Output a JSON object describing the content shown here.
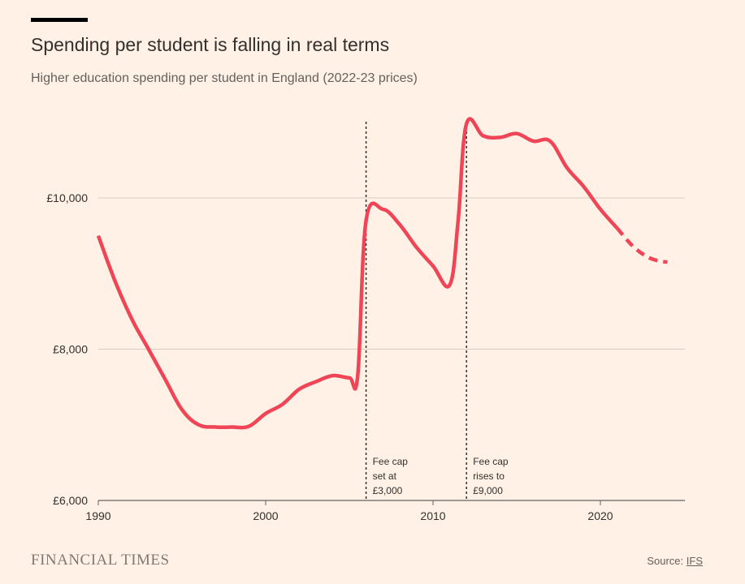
{
  "header": {
    "title": "Spending per student is falling in real terms",
    "subtitle": "Higher education spending per student in England (2022-23 prices)"
  },
  "footer": {
    "logo_text": "FINANCIAL TIMES",
    "source_label": "Source: ",
    "source_link": "IFS"
  },
  "colors": {
    "background": "#FFF1E5",
    "line": "#F04556",
    "gridline": "#D9CCC1",
    "axis": "#66605C",
    "text": "#33302E"
  },
  "chart_data": {
    "type": "line",
    "title": "Spending per student is falling in real terms",
    "subtitle": "Higher education spending per student in England (2022-23 prices)",
    "xlabel": "",
    "ylabel": "",
    "xlim": [
      1990,
      2025
    ],
    "ylim": [
      6000,
      11100
    ],
    "x_ticks": [
      1990,
      2000,
      2010,
      2020
    ],
    "y_ticks": [
      {
        "value": 6000,
        "label": "£6,000"
      },
      {
        "value": 8000,
        "label": "£8,000"
      },
      {
        "value": 10000,
        "label": "£10,000"
      }
    ],
    "grid": true,
    "series": [
      {
        "style": "solid",
        "points": [
          [
            1990,
            9500
          ],
          [
            1991,
            8900
          ],
          [
            1992,
            8400
          ],
          [
            1993,
            8000
          ],
          [
            1994,
            7600
          ],
          [
            1995,
            7200
          ],
          [
            1996,
            7000
          ],
          [
            1997,
            6970
          ],
          [
            1998,
            6970
          ],
          [
            1999,
            6980
          ],
          [
            2000,
            7150
          ],
          [
            2001,
            7270
          ],
          [
            2002,
            7470
          ],
          [
            2003,
            7570
          ],
          [
            2004,
            7650
          ],
          [
            2005,
            7620
          ],
          [
            2005.5,
            7650
          ],
          [
            2006,
            9700
          ],
          [
            2007,
            9850
          ],
          [
            2008,
            9650
          ],
          [
            2009,
            9350
          ],
          [
            2010,
            9100
          ],
          [
            2011,
            8850
          ],
          [
            2011.5,
            9700
          ],
          [
            2012,
            10980
          ],
          [
            2013,
            10820
          ],
          [
            2014,
            10800
          ],
          [
            2015,
            10850
          ],
          [
            2016,
            10750
          ],
          [
            2017,
            10750
          ],
          [
            2018,
            10400
          ],
          [
            2019,
            10150
          ],
          [
            2020,
            9850
          ],
          [
            2021,
            9600
          ]
        ]
      },
      {
        "style": "dashed",
        "points": [
          [
            2021,
            9600
          ],
          [
            2022,
            9350
          ],
          [
            2023,
            9200
          ],
          [
            2024,
            9150
          ]
        ]
      }
    ],
    "annotations": [
      {
        "x": 2006,
        "label_lines": [
          "Fee cap",
          "set at",
          "£3,000"
        ]
      },
      {
        "x": 2012,
        "label_lines": [
          "Fee cap",
          "rises to",
          "£9,000"
        ]
      }
    ]
  }
}
